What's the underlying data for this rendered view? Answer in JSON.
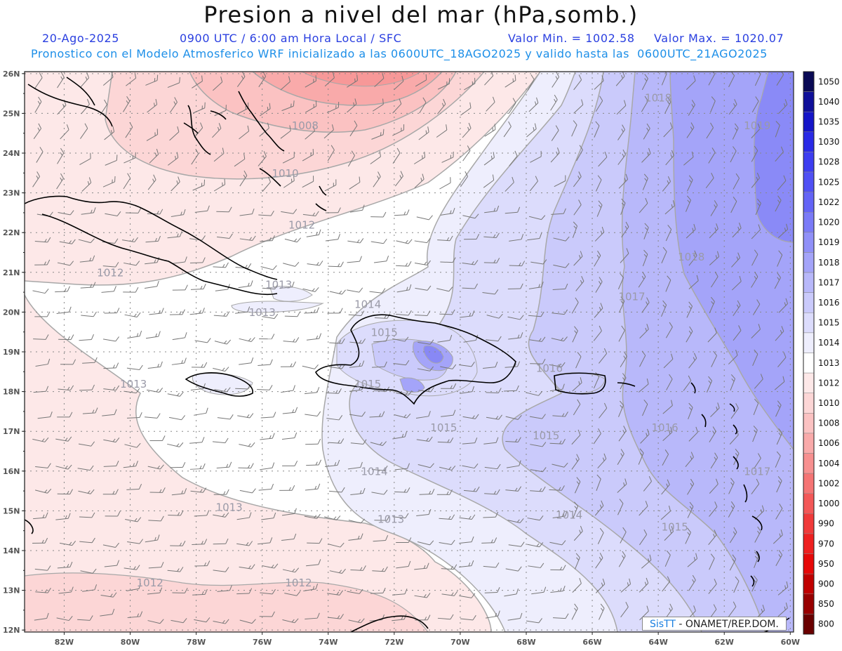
{
  "header": {
    "title": "Presion a nivel del mar (hPa,somb.)",
    "date": "20-Ago-2025",
    "time_info": "0900 UTC / 6:00 am Hora Local / SFC",
    "min_label": "Valor Min. = 1002.58",
    "max_label": "Valor Max. = 1020.07",
    "subtitle": "Pronostico con el Modelo Atmosferico WRF inicializado a las 0600UTC_18AGO2025 y valido hasta las  0600UTC_21AGO2025"
  },
  "axes": {
    "lat_labels": [
      "26N",
      "25N",
      "24N",
      "23N",
      "22N",
      "21N",
      "20N",
      "19N",
      "18N",
      "17N",
      "16N",
      "15N",
      "14N",
      "13N",
      "12N"
    ],
    "lon_labels": [
      "82W",
      "80W",
      "78W",
      "76W",
      "74W",
      "72W",
      "70W",
      "68W",
      "66W",
      "64W",
      "62W",
      "60W"
    ]
  },
  "colorbar": {
    "levels": [
      {
        "label": "1050",
        "color": "#0a0a55"
      },
      {
        "label": "1040",
        "color": "#10109a"
      },
      {
        "label": "1035",
        "color": "#1515c8"
      },
      {
        "label": "1030",
        "color": "#2a2ae6"
      },
      {
        "label": "1028",
        "color": "#3d3df0"
      },
      {
        "label": "1025",
        "color": "#5050f4"
      },
      {
        "label": "1022",
        "color": "#6464f6"
      },
      {
        "label": "1020",
        "color": "#7a7af7"
      },
      {
        "label": "1019",
        "color": "#9090f8"
      },
      {
        "label": "1018",
        "color": "#a4a4f9"
      },
      {
        "label": "1017",
        "color": "#b8b8fa"
      },
      {
        "label": "1016",
        "color": "#cacafb"
      },
      {
        "label": "1015",
        "color": "#dcdcfc"
      },
      {
        "label": "1014",
        "color": "#eeeefd"
      },
      {
        "label": "1013",
        "color": "#ffffff"
      },
      {
        "label": "1012",
        "color": "#fde8e8"
      },
      {
        "label": "1010",
        "color": "#fcd6d6"
      },
      {
        "label": "1008",
        "color": "#fbc2c2"
      },
      {
        "label": "1006",
        "color": "#f9aaaa"
      },
      {
        "label": "1004",
        "color": "#f79090"
      },
      {
        "label": "1002",
        "color": "#f57474"
      },
      {
        "label": "1000",
        "color": "#f35858"
      },
      {
        "label": "990",
        "color": "#f03a3a"
      },
      {
        "label": "970",
        "color": "#ee2020"
      },
      {
        "label": "950",
        "color": "#e60808"
      },
      {
        "label": "900",
        "color": "#c00000"
      },
      {
        "label": "850",
        "color": "#980000"
      },
      {
        "label": "800",
        "color": "#6a0000"
      }
    ]
  },
  "contour_labels": [
    {
      "text": "1008",
      "lon": -74.7,
      "lat": 24.6
    },
    {
      "text": "1010",
      "lon": -75.3,
      "lat": 23.4
    },
    {
      "text": "1012",
      "lon": -74.8,
      "lat": 22.1
    },
    {
      "text": "1012",
      "lon": -80.6,
      "lat": 20.9
    },
    {
      "text": "1013",
      "lon": -75.5,
      "lat": 20.6
    },
    {
      "text": "1013",
      "lon": -76.0,
      "lat": 19.9
    },
    {
      "text": "1014",
      "lon": -72.8,
      "lat": 20.1
    },
    {
      "text": "1015",
      "lon": -72.3,
      "lat": 19.4
    },
    {
      "text": "1015",
      "lon": -72.8,
      "lat": 18.1
    },
    {
      "text": "1013",
      "lon": -79.9,
      "lat": 18.1
    },
    {
      "text": "1016",
      "lon": -67.3,
      "lat": 18.5
    },
    {
      "text": "1015",
      "lon": -70.5,
      "lat": 17.0
    },
    {
      "text": "1015",
      "lon": -67.4,
      "lat": 16.8
    },
    {
      "text": "1016",
      "lon": -63.8,
      "lat": 17.0
    },
    {
      "text": "1014",
      "lon": -72.6,
      "lat": 15.9
    },
    {
      "text": "1013",
      "lon": -77.0,
      "lat": 15.0
    },
    {
      "text": "1013",
      "lon": -72.1,
      "lat": 14.7
    },
    {
      "text": "1014",
      "lon": -66.7,
      "lat": 14.8
    },
    {
      "text": "1015",
      "lon": -63.5,
      "lat": 14.5
    },
    {
      "text": "1017",
      "lon": -64.8,
      "lat": 20.3
    },
    {
      "text": "1018",
      "lon": -63.0,
      "lat": 21.3
    },
    {
      "text": "1018",
      "lon": -64.0,
      "lat": 25.3
    },
    {
      "text": "1019",
      "lon": -61.0,
      "lat": 24.6
    },
    {
      "text": "1017",
      "lon": -61.0,
      "lat": 15.9
    },
    {
      "text": "1012",
      "lon": -79.4,
      "lat": 13.1
    },
    {
      "text": "1012",
      "lon": -74.9,
      "lat": 13.1
    }
  ],
  "credit": {
    "brand": "SisTT",
    "text": " - ONAMET/REP.DOM."
  }
}
